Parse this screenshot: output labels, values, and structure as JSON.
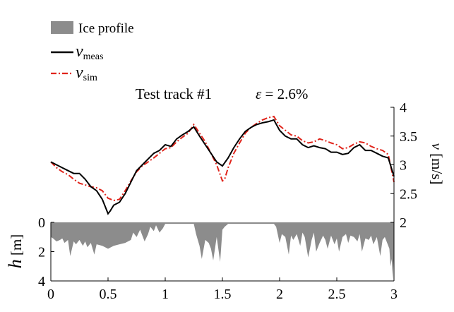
{
  "chart_data": {
    "type": "line",
    "title": "Test track #1",
    "annotation": {
      "symbol": "ε",
      "text": " = 2.6%"
    },
    "xlim": [
      0,
      3
    ],
    "xticks": [
      "0",
      "0.5",
      "1",
      "1.5",
      "2",
      "2.5",
      "3"
    ],
    "ylabel_right": {
      "var": "v",
      "unit": "[m/s]"
    },
    "ylim_right": [
      2,
      4
    ],
    "yticks_right": [
      "2",
      "2.5",
      "3",
      "3.5",
      "4"
    ],
    "ylabel_left": {
      "var": "h",
      "unit": "[m]"
    },
    "ylim_left": [
      0,
      4
    ],
    "yticks_left": [
      "0",
      "2",
      "4"
    ],
    "legend": [
      {
        "label": "Ice profile",
        "kind": "patch",
        "color": "#8c8c8c"
      },
      {
        "label": "v",
        "sub": "meas",
        "kind": "solid",
        "color": "#000000"
      },
      {
        "label": "v",
        "sub": "sim",
        "kind": "dashdot",
        "color": "#e0241b"
      }
    ],
    "series": [
      {
        "name": "v_meas",
        "color": "#000000",
        "x": [
          0,
          0.05,
          0.1,
          0.15,
          0.2,
          0.25,
          0.3,
          0.35,
          0.4,
          0.45,
          0.48,
          0.5,
          0.52,
          0.55,
          0.6,
          0.65,
          0.7,
          0.75,
          0.8,
          0.85,
          0.9,
          0.95,
          1.0,
          1.05,
          1.1,
          1.15,
          1.2,
          1.25,
          1.3,
          1.35,
          1.4,
          1.45,
          1.5,
          1.55,
          1.6,
          1.65,
          1.7,
          1.75,
          1.8,
          1.85,
          1.9,
          1.95,
          2.0,
          2.05,
          2.1,
          2.15,
          2.2,
          2.25,
          2.3,
          2.35,
          2.4,
          2.45,
          2.5,
          2.55,
          2.6,
          2.65,
          2.7,
          2.75,
          2.8,
          2.85,
          2.9,
          2.95,
          3.0
        ],
        "y": [
          3.05,
          3.0,
          2.95,
          2.9,
          2.85,
          2.85,
          2.75,
          2.62,
          2.55,
          2.4,
          2.25,
          2.15,
          2.2,
          2.3,
          2.35,
          2.5,
          2.7,
          2.9,
          3.0,
          3.1,
          3.2,
          3.25,
          3.35,
          3.32,
          3.45,
          3.52,
          3.58,
          3.66,
          3.5,
          3.35,
          3.2,
          3.05,
          2.98,
          3.12,
          3.3,
          3.45,
          3.58,
          3.65,
          3.7,
          3.73,
          3.75,
          3.78,
          3.6,
          3.5,
          3.45,
          3.45,
          3.35,
          3.3,
          3.33,
          3.3,
          3.28,
          3.22,
          3.22,
          3.18,
          3.2,
          3.3,
          3.35,
          3.25,
          3.25,
          3.2,
          3.15,
          3.12,
          2.8
        ]
      },
      {
        "name": "v_sim",
        "color": "#e0241b",
        "x": [
          0,
          0.05,
          0.1,
          0.15,
          0.2,
          0.25,
          0.3,
          0.35,
          0.4,
          0.45,
          0.5,
          0.55,
          0.6,
          0.65,
          0.7,
          0.75,
          0.8,
          0.85,
          0.9,
          0.95,
          1.0,
          1.05,
          1.1,
          1.15,
          1.2,
          1.25,
          1.3,
          1.35,
          1.4,
          1.45,
          1.5,
          1.52,
          1.55,
          1.6,
          1.65,
          1.7,
          1.75,
          1.8,
          1.85,
          1.9,
          1.95,
          2.0,
          2.05,
          2.1,
          2.15,
          2.2,
          2.25,
          2.3,
          2.35,
          2.4,
          2.45,
          2.5,
          2.55,
          2.6,
          2.65,
          2.7,
          2.75,
          2.8,
          2.85,
          2.9,
          2.95,
          3.0
        ],
        "y": [
          3.05,
          2.95,
          2.88,
          2.83,
          2.75,
          2.68,
          2.65,
          2.62,
          2.6,
          2.55,
          2.42,
          2.38,
          2.4,
          2.55,
          2.72,
          2.88,
          2.98,
          3.05,
          3.12,
          3.2,
          3.28,
          3.3,
          3.4,
          3.48,
          3.55,
          3.7,
          3.55,
          3.4,
          3.2,
          3.0,
          2.72,
          2.75,
          2.95,
          3.2,
          3.38,
          3.55,
          3.65,
          3.72,
          3.78,
          3.82,
          3.84,
          3.68,
          3.6,
          3.52,
          3.5,
          3.42,
          3.38,
          3.4,
          3.45,
          3.42,
          3.38,
          3.35,
          3.28,
          3.3,
          3.36,
          3.4,
          3.38,
          3.32,
          3.28,
          3.25,
          3.18,
          2.7
        ]
      },
      {
        "name": "Ice profile",
        "color": "#8c8c8c",
        "x": [
          0,
          0.02,
          0.05,
          0.08,
          0.1,
          0.12,
          0.15,
          0.17,
          0.2,
          0.22,
          0.25,
          0.28,
          0.3,
          0.32,
          0.35,
          0.38,
          0.4,
          0.45,
          0.5,
          0.55,
          0.6,
          0.65,
          0.7,
          0.72,
          0.75,
          0.78,
          0.8,
          0.82,
          0.85,
          0.87,
          0.9,
          0.92,
          0.95,
          0.98,
          1.0,
          1.05,
          1.1,
          1.15,
          1.2,
          1.25,
          1.27,
          1.3,
          1.32,
          1.35,
          1.38,
          1.4,
          1.42,
          1.45,
          1.48,
          1.5,
          1.52,
          1.55,
          1.58,
          1.6,
          1.65,
          1.7,
          1.75,
          1.8,
          1.85,
          1.9,
          1.95,
          1.97,
          2.0,
          2.02,
          2.05,
          2.08,
          2.1,
          2.12,
          2.15,
          2.18,
          2.2,
          2.22,
          2.25,
          2.28,
          2.3,
          2.32,
          2.35,
          2.38,
          2.4,
          2.42,
          2.45,
          2.48,
          2.5,
          2.52,
          2.55,
          2.58,
          2.6,
          2.62,
          2.65,
          2.68,
          2.7,
          2.72,
          2.75,
          2.78,
          2.8,
          2.82,
          2.85,
          2.88,
          2.9,
          2.92,
          2.94,
          2.96,
          2.97,
          2.98,
          2.99,
          3.0
        ],
        "y": [
          1.0,
          1.1,
          1.3,
          1.2,
          1.1,
          1.4,
          1.2,
          2.3,
          1.3,
          1.5,
          1.2,
          1.6,
          1.3,
          1.7,
          1.4,
          2.2,
          1.5,
          1.6,
          1.8,
          1.6,
          1.5,
          1.4,
          1.2,
          0.7,
          1.0,
          0.5,
          0.9,
          1.3,
          0.8,
          0.3,
          0.6,
          0.2,
          0.7,
          0.4,
          0.1,
          0.1,
          0.1,
          0.1,
          0.1,
          0.1,
          0.8,
          1.6,
          2.5,
          1.2,
          1.4,
          1.8,
          2.6,
          1.0,
          2.7,
          0.5,
          0.3,
          0.1,
          0.1,
          0.1,
          0.1,
          0.1,
          0.1,
          0.1,
          0.1,
          0.1,
          0.1,
          0.3,
          1.4,
          0.8,
          1.0,
          2.2,
          0.9,
          1.2,
          0.8,
          1.6,
          0.7,
          1.0,
          2.4,
          1.2,
          0.7,
          2.0,
          1.4,
          0.9,
          1.2,
          1.8,
          0.9,
          1.5,
          1.1,
          2.0,
          1.0,
          0.8,
          1.4,
          0.9,
          1.0,
          1.3,
          0.8,
          2.0,
          1.1,
          1.2,
          0.9,
          1.5,
          1.0,
          2.3,
          1.2,
          1.0,
          1.4,
          1.8,
          3.0,
          2.5,
          3.9,
          2.0
        ]
      }
    ]
  }
}
